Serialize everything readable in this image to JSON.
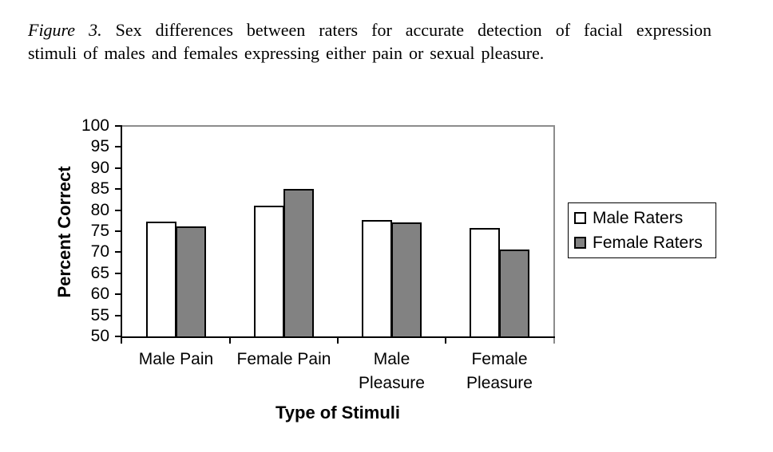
{
  "caption": {
    "figure_label": "Figure 3.",
    "line1_rest": "Sex differences between raters for accurate detection of facial expression",
    "line2": "stimuli of males and females expressing either pain or sexual pleasure."
  },
  "chart_data": {
    "type": "bar",
    "categories": [
      "Male Pain",
      "Female Pain",
      "Male Pleasure",
      "Female Pleasure"
    ],
    "series": [
      {
        "name": "Male Raters",
        "values": [
          77.3,
          81,
          77.6,
          75.8
        ],
        "fill": "#ffffff"
      },
      {
        "name": "Female Raters",
        "values": [
          76.2,
          85,
          77,
          70.6
        ],
        "fill": "#828282"
      }
    ],
    "xlabel": "Type of Stimuli",
    "ylabel": "Percent Correct",
    "ylim": [
      50,
      100
    ],
    "yticks": [
      50,
      55,
      60,
      65,
      70,
      75,
      80,
      85,
      90,
      95,
      100
    ],
    "legend": {
      "position": "right",
      "entries": [
        "Male Raters",
        "Female Raters"
      ]
    },
    "grid": "top-border-only"
  },
  "colors": {
    "bar_border": "#000000",
    "gray_fill": "#828282",
    "chart_border_gray": "#8c8c8c",
    "axis": "#000000",
    "background": "#ffffff"
  }
}
